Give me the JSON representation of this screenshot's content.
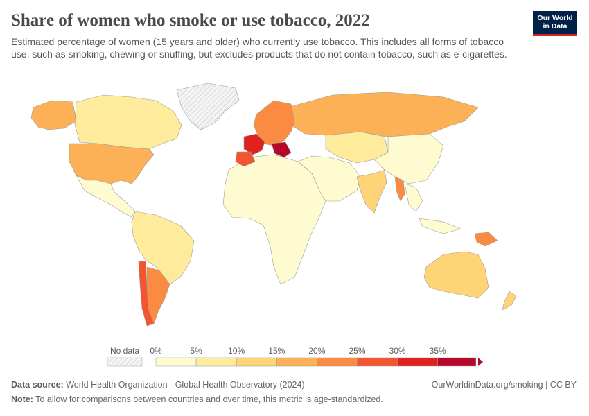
{
  "header": {
    "title": "Share of women who smoke or use tobacco, 2022",
    "subtitle": "Estimated percentage of women (15 years and older) who currently use tobacco. This includes all forms of tobacco use, such as smoking, chewing or snuffing, but excludes products that do not contain tobacco, such as e-cigarettes.",
    "logo_line1": "Our World",
    "logo_line2": "in Data"
  },
  "legend": {
    "no_data_label": "No data",
    "bins": [
      {
        "label": "0%",
        "color": "#fffbd1"
      },
      {
        "label": "5%",
        "color": "#feeb9c"
      },
      {
        "label": "10%",
        "color": "#fed477"
      },
      {
        "label": "15%",
        "color": "#fdb156"
      },
      {
        "label": "20%",
        "color": "#fc8b42"
      },
      {
        "label": "25%",
        "color": "#f4552f"
      },
      {
        "label": "30%",
        "color": "#e0221f"
      },
      {
        "label": "35%",
        "color": "#b5082a"
      }
    ]
  },
  "regions": [
    {
      "name": "canada",
      "color": "#feeb9c"
    },
    {
      "name": "alaska",
      "color": "#fdb156"
    },
    {
      "name": "greenland",
      "color": "nodata"
    },
    {
      "name": "usa",
      "color": "#fdb156"
    },
    {
      "name": "mexico-central",
      "color": "#fffbd1"
    },
    {
      "name": "south-america",
      "color": "#feeb9c"
    },
    {
      "name": "chile",
      "color": "#f4552f"
    },
    {
      "name": "argentina",
      "color": "#fc8b42"
    },
    {
      "name": "africa",
      "color": "#fffbd1"
    },
    {
      "name": "western-europe",
      "color": "#fc8b42"
    },
    {
      "name": "france",
      "color": "#e0221f"
    },
    {
      "name": "spain",
      "color": "#f4552f"
    },
    {
      "name": "balkans",
      "color": "#b5082a"
    },
    {
      "name": "russia",
      "color": "#fdb156"
    },
    {
      "name": "central-asia",
      "color": "#feeb9c"
    },
    {
      "name": "middle-east",
      "color": "#fffbd1"
    },
    {
      "name": "india",
      "color": "#fed477"
    },
    {
      "name": "myanmar",
      "color": "#fc8b42"
    },
    {
      "name": "china",
      "color": "#fffbd1"
    },
    {
      "name": "southeast-asia",
      "color": "#fffbd1"
    },
    {
      "name": "papua-new-guinea",
      "color": "#fc8b42"
    },
    {
      "name": "australia",
      "color": "#fed477"
    },
    {
      "name": "new-zealand",
      "color": "#fed477"
    }
  ],
  "footer": {
    "source_label": "Data source:",
    "source_text": "World Health Organization - Global Health Observatory (2024)",
    "url_text": "OurWorldinData.org/smoking | CC BY",
    "note_label": "Note:",
    "note_text": "To allow for comparisons between countries and over time, this metric is age-standardized."
  }
}
